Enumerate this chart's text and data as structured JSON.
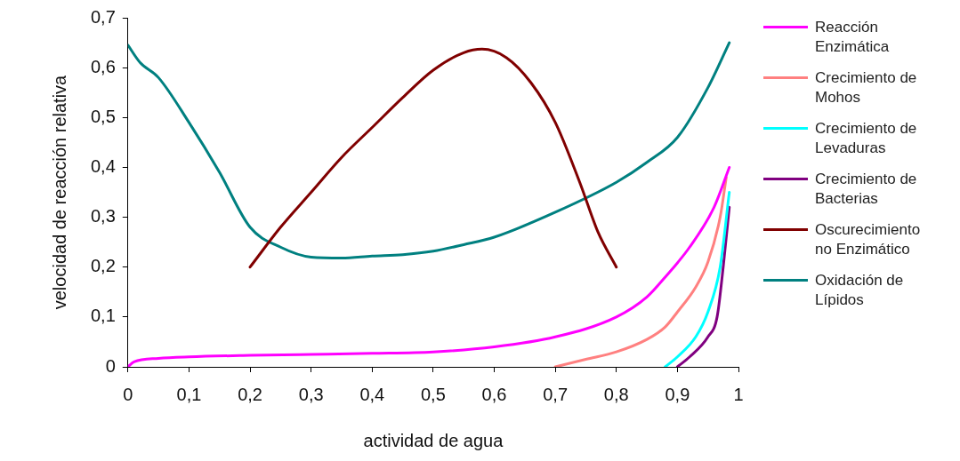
{
  "chart_data": {
    "type": "line",
    "xlabel": "actividad de agua",
    "ylabel": "velocidad de reacción relativa",
    "xlim": [
      0,
      1
    ],
    "ylim": [
      0,
      0.7
    ],
    "xticks": [
      {
        "value": 0,
        "label": "0"
      },
      {
        "value": 0.1,
        "label": "0,1"
      },
      {
        "value": 0.2,
        "label": "0,2"
      },
      {
        "value": 0.3,
        "label": "0,3"
      },
      {
        "value": 0.4,
        "label": "0,4"
      },
      {
        "value": 0.5,
        "label": "0,5"
      },
      {
        "value": 0.6,
        "label": "0,6"
      },
      {
        "value": 0.7,
        "label": "0,7"
      },
      {
        "value": 0.8,
        "label": "0,8"
      },
      {
        "value": 0.9,
        "label": "0,9"
      },
      {
        "value": 1,
        "label": "1"
      }
    ],
    "yticks": [
      {
        "value": 0,
        "label": "0"
      },
      {
        "value": 0.1,
        "label": "0,1"
      },
      {
        "value": 0.2,
        "label": "0,2"
      },
      {
        "value": 0.3,
        "label": "0,3"
      },
      {
        "value": 0.4,
        "label": "0,4"
      },
      {
        "value": 0.5,
        "label": "0,5"
      },
      {
        "value": 0.6,
        "label": "0,6"
      },
      {
        "value": 0.7,
        "label": "0,7"
      }
    ],
    "grid": false,
    "legend": "right",
    "marker": "none",
    "line_style": "solid",
    "series": [
      {
        "name": "Reacción Enzimática",
        "color": "#ff00ff",
        "x": [
          0,
          0.01,
          0.05,
          0.1,
          0.2,
          0.3,
          0.4,
          0.5,
          0.6,
          0.7,
          0.8,
          0.85,
          0.88,
          0.92,
          0.96,
          0.985
        ],
        "values": [
          0,
          0.01,
          0.017,
          0.02,
          0.023,
          0.025,
          0.027,
          0.03,
          0.04,
          0.06,
          0.1,
          0.14,
          0.18,
          0.24,
          0.32,
          0.4
        ]
      },
      {
        "name": "Crecimiento de Mohos",
        "color": "#ff8080",
        "x": [
          0.7,
          0.75,
          0.8,
          0.85,
          0.88,
          0.9,
          0.93,
          0.95,
          0.97,
          0.98
        ],
        "values": [
          0,
          0.015,
          0.03,
          0.055,
          0.08,
          0.11,
          0.16,
          0.21,
          0.3,
          0.38
        ]
      },
      {
        "name": "Crecimiento de Levaduras",
        "color": "#00ffff",
        "x": [
          0.88,
          0.9,
          0.93,
          0.95,
          0.97,
          0.985
        ],
        "values": [
          0,
          0.02,
          0.06,
          0.11,
          0.2,
          0.35
        ]
      },
      {
        "name": "Crecimiento de Bacterias",
        "color": "#800080",
        "x": [
          0.9,
          0.92,
          0.95,
          0.965,
          0.975,
          0.985
        ],
        "values": [
          0,
          0.02,
          0.06,
          0.1,
          0.2,
          0.32
        ]
      },
      {
        "name": "Oscurecimiento no Enzimático",
        "color": "#800000",
        "x": [
          0.2,
          0.25,
          0.3,
          0.35,
          0.4,
          0.45,
          0.5,
          0.55,
          0.58,
          0.62,
          0.66,
          0.7,
          0.74,
          0.77,
          0.8
        ],
        "values": [
          0.2,
          0.28,
          0.35,
          0.42,
          0.48,
          0.54,
          0.595,
          0.63,
          0.637,
          0.62,
          0.57,
          0.49,
          0.37,
          0.27,
          0.2
        ]
      },
      {
        "name": "Oxidación de Lípidos",
        "color": "#008080",
        "x": [
          0,
          0.02,
          0.05,
          0.1,
          0.15,
          0.2,
          0.25,
          0.3,
          0.35,
          0.4,
          0.45,
          0.5,
          0.55,
          0.6,
          0.7,
          0.8,
          0.85,
          0.9,
          0.95,
          0.985
        ],
        "values": [
          0.645,
          0.61,
          0.58,
          0.49,
          0.39,
          0.28,
          0.24,
          0.22,
          0.218,
          0.222,
          0.225,
          0.232,
          0.245,
          0.26,
          0.31,
          0.37,
          0.41,
          0.46,
          0.56,
          0.65
        ]
      }
    ]
  }
}
